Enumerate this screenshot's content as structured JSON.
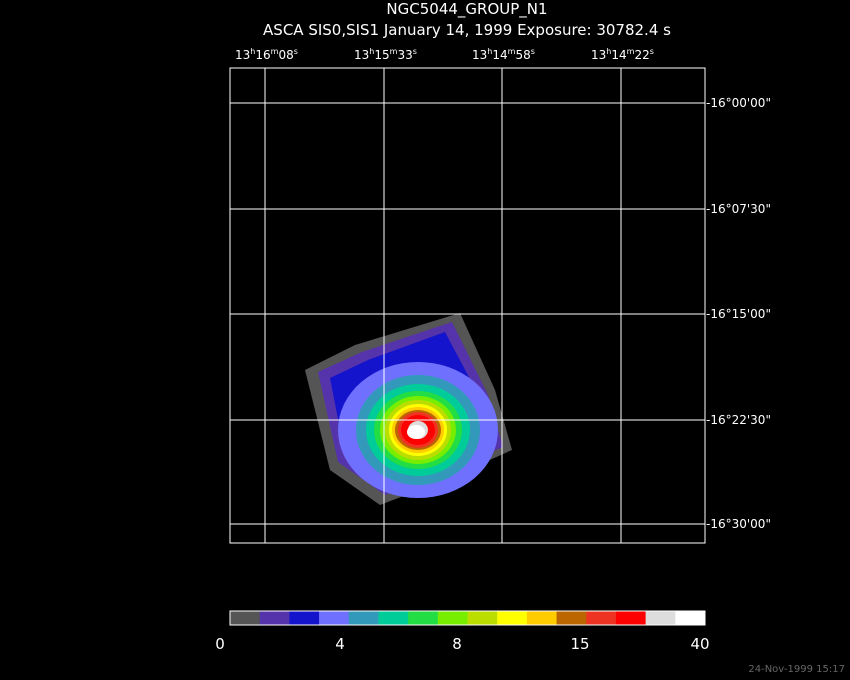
{
  "title": "NGC5044_GROUP_N1",
  "subtitle": "ASCA SIS0,SIS1 January 14, 1999 Exposure: 30782.4 s",
  "ra_labels": [
    [
      "13",
      "h",
      "16",
      "m",
      "08",
      "s"
    ],
    [
      "13",
      "h",
      "15",
      "m",
      "33",
      "s"
    ],
    [
      "13",
      "h",
      "14",
      "m",
      "58",
      "s"
    ],
    [
      "13",
      "h",
      "14",
      "m",
      "22",
      "s"
    ]
  ],
  "dec_labels": [
    "-16°00'00\"",
    "-16°07'30\"",
    "-16°15'00\"",
    "-16°22'30\"",
    "-16°30'00\""
  ],
  "colorbar": {
    "colors": [
      "#555555",
      "#5533aa",
      "#1414cc",
      "#7070ff",
      "#3399bb",
      "#00cc99",
      "#22dd44",
      "#77ee00",
      "#bbdd00",
      "#ffff00",
      "#ffcc00",
      "#bb6600",
      "#ee3322",
      "#ff0000",
      "#dddddd",
      "#ffffff"
    ],
    "labels": [
      "0",
      "4",
      "8",
      "15",
      "40"
    ]
  },
  "timestamp": "24-Nov-1999 15:17"
}
